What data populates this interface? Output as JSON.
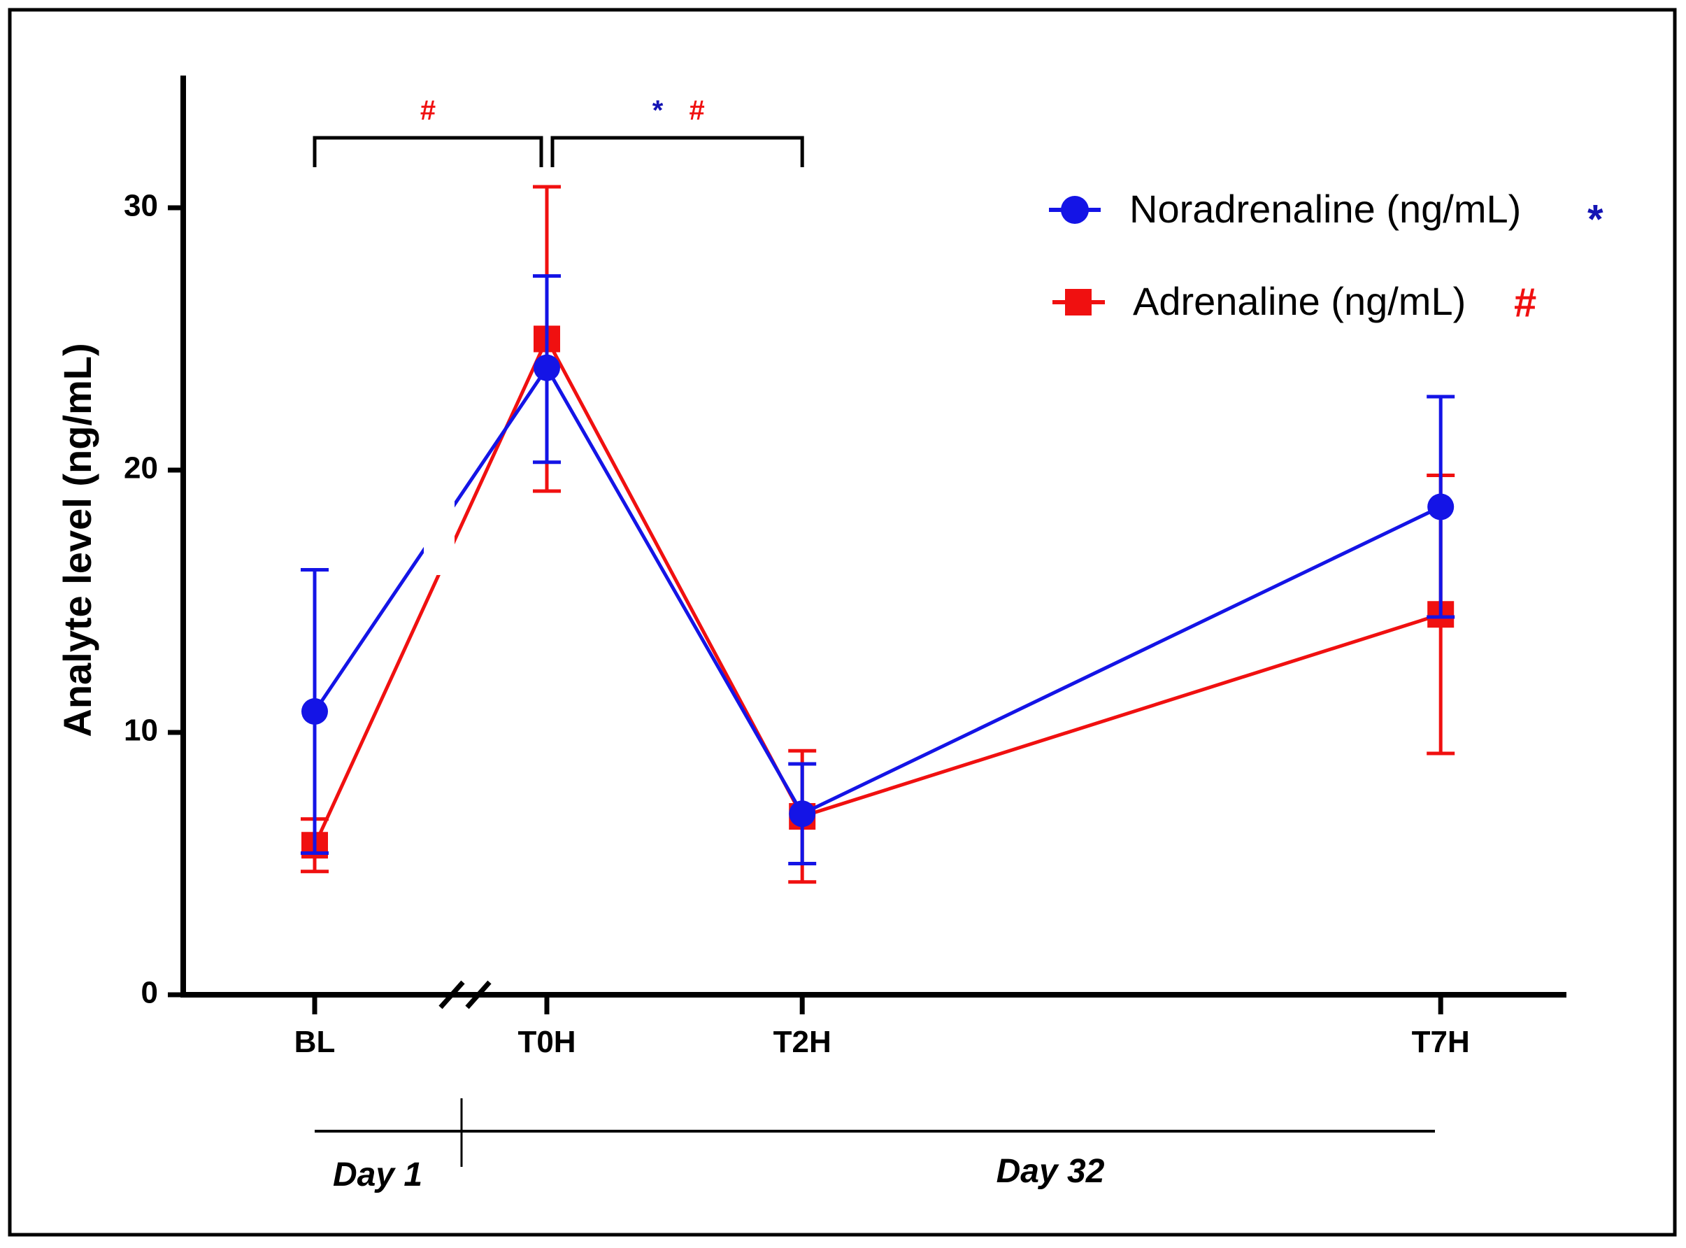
{
  "chart_data": {
    "type": "line",
    "title": "",
    "xlabel": "",
    "ylabel": "Analyte level (ng/mL)",
    "ylim": [
      0,
      35
    ],
    "yticks": [
      0,
      10,
      20,
      30
    ],
    "categories": [
      "BL",
      "T0H",
      "T2H",
      "T7H"
    ],
    "x": [
      0,
      1,
      2.1,
      4.85
    ],
    "axis_break_between": [
      "BL",
      "T0H"
    ],
    "series": [
      {
        "name": "Noradrenaline (ng/mL)",
        "marker_label": "*",
        "color": "#1414e6",
        "marker": "circle",
        "values": [
          10.8,
          23.9,
          6.9,
          18.6
        ],
        "error_upper": [
          16.2,
          27.4,
          8.8,
          22.8
        ],
        "error_lower": [
          5.4,
          20.3,
          5.0,
          14.4
        ]
      },
      {
        "name": "Adrenaline (ng/mL)",
        "marker_label": "#",
        "color": "#f01010",
        "marker": "square",
        "values": [
          5.7,
          25.0,
          6.8,
          14.5
        ],
        "error_upper": [
          6.7,
          30.8,
          9.3,
          19.8
        ],
        "error_lower": [
          4.7,
          19.2,
          4.3,
          9.2
        ]
      }
    ],
    "significance": [
      {
        "from": "BL",
        "to": "T0H",
        "markers": [
          {
            "text": "#",
            "color": "#f01010"
          }
        ]
      },
      {
        "from": "T0H",
        "to": "T2H",
        "markers": [
          {
            "text": "*",
            "color": "#1414b4"
          },
          {
            "text": "#",
            "color": "#f01010"
          }
        ]
      }
    ],
    "legend_position": "top-right",
    "timeline": {
      "labels": [
        "Day 1",
        "Day 32"
      ]
    }
  }
}
